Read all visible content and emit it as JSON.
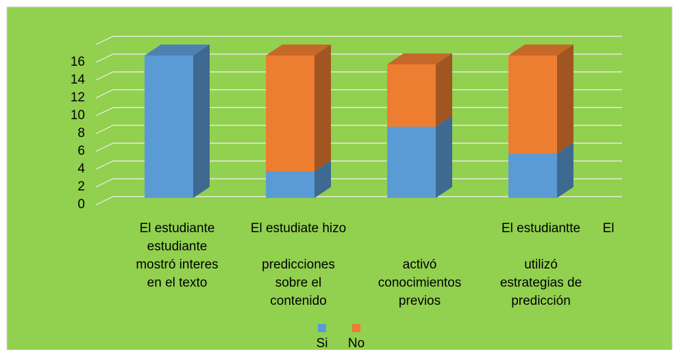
{
  "chart_data": {
    "type": "bar3d_stacked",
    "categories": [
      [
        "El estudiante",
        "estudiante",
        "mostró interes",
        "en el texto"
      ],
      [
        "El estudiate hizo",
        "predicciones",
        "sobre el",
        "contenido"
      ],
      [
        "activó",
        "conocimientos",
        "previos"
      ],
      [
        "El estudiantte",
        "utilizó",
        "estrategias de",
        "predicción"
      ]
    ],
    "annotations": [
      "El"
    ],
    "series": [
      {
        "name": "Si",
        "color": "#5b9bd5",
        "values": [
          16,
          3,
          8,
          5
        ]
      },
      {
        "name": "No",
        "color": "#ed7d31",
        "values": [
          0,
          13,
          7,
          11
        ]
      }
    ],
    "ylim": [
      0,
      18
    ],
    "yticks": [
      0,
      2,
      4,
      6,
      8,
      10,
      12,
      14,
      16
    ],
    "grid": true,
    "stacked": true,
    "background": "#92d050",
    "legend": "bottom"
  }
}
